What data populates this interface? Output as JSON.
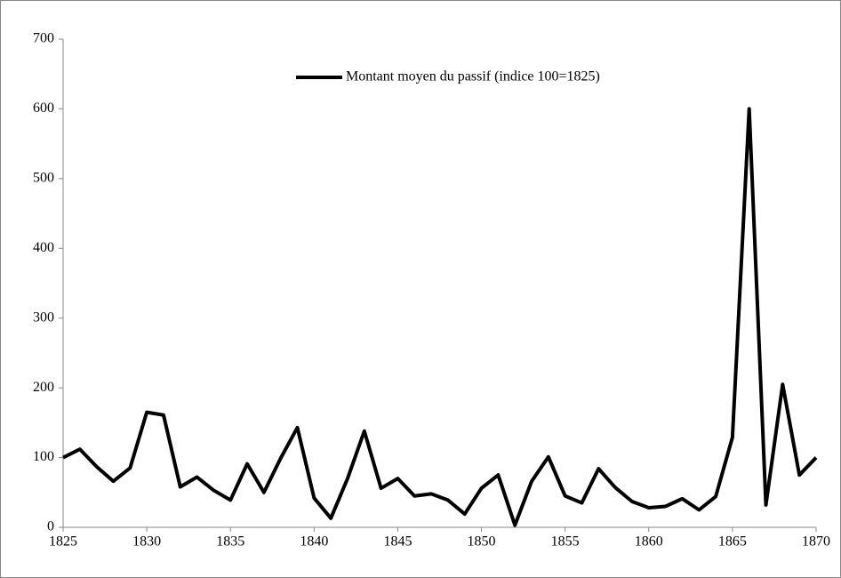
{
  "chart_data": {
    "type": "line",
    "x": [
      1825,
      1826,
      1827,
      1828,
      1829,
      1830,
      1831,
      1832,
      1833,
      1834,
      1835,
      1836,
      1837,
      1838,
      1839,
      1840,
      1841,
      1842,
      1843,
      1844,
      1845,
      1846,
      1847,
      1848,
      1849,
      1850,
      1851,
      1852,
      1853,
      1854,
      1855,
      1856,
      1857,
      1858,
      1859,
      1860,
      1861,
      1862,
      1863,
      1864,
      1865,
      1866,
      1867,
      1868,
      1869,
      1870
    ],
    "series": [
      {
        "name": "Montant moyen du passif (indice 100=1825)",
        "color": "#000000",
        "values": [
          100,
          112,
          87,
          66,
          85,
          165,
          161,
          58,
          72,
          53,
          39,
          91,
          50,
          99,
          143,
          42,
          13,
          70,
          138,
          56,
          70,
          45,
          48,
          39,
          19,
          56,
          75,
          3,
          66,
          101,
          45,
          35,
          84,
          57,
          37,
          28,
          30,
          41,
          25,
          44,
          129,
          600,
          32,
          205,
          75,
          100
        ]
      }
    ],
    "xlim": [
      1825,
      1870
    ],
    "xticks": [
      1825,
      1830,
      1835,
      1840,
      1845,
      1850,
      1855,
      1860,
      1865,
      1870
    ],
    "ylim": [
      0,
      700
    ],
    "yticks": [
      0,
      100,
      200,
      300,
      400,
      500,
      600,
      700
    ],
    "legend": "top"
  }
}
